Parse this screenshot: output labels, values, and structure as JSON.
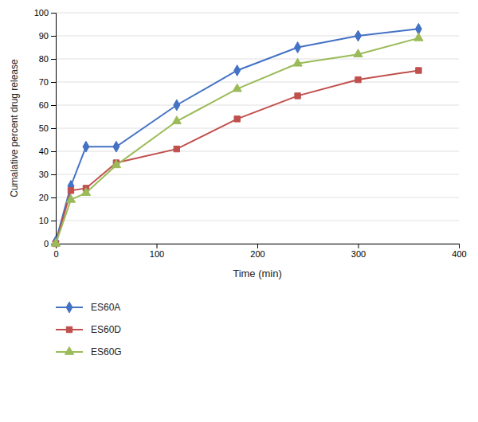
{
  "chart_data": {
    "type": "line",
    "xlabel": "Time (min)",
    "ylabel": "Cumalative percent drug release",
    "x": [
      0,
      15,
      30,
      60,
      120,
      180,
      240,
      300,
      360
    ],
    "series": [
      {
        "name": "ES60A",
        "color": "#4472C4",
        "marker": "diamond",
        "values": [
          1,
          25,
          42,
          42,
          60,
          75,
          85,
          90,
          93
        ]
      },
      {
        "name": "ES60D",
        "color": "#C0504D",
        "marker": "square",
        "values": [
          0,
          23,
          24,
          35,
          41,
          54,
          64,
          71,
          75
        ]
      },
      {
        "name": "ES60G",
        "color": "#9BBB59",
        "marker": "triangle",
        "values": [
          0,
          19,
          22,
          34,
          53,
          67,
          78,
          82,
          89
        ]
      }
    ],
    "xlim": [
      0,
      400
    ],
    "ylim": [
      0,
      100
    ],
    "xticks": [
      0,
      100,
      200,
      300,
      400
    ],
    "yticks": [
      0,
      10,
      20,
      30,
      40,
      50,
      60,
      70,
      80,
      90,
      100
    ],
    "grid": true,
    "legend": "bottom-left"
  }
}
